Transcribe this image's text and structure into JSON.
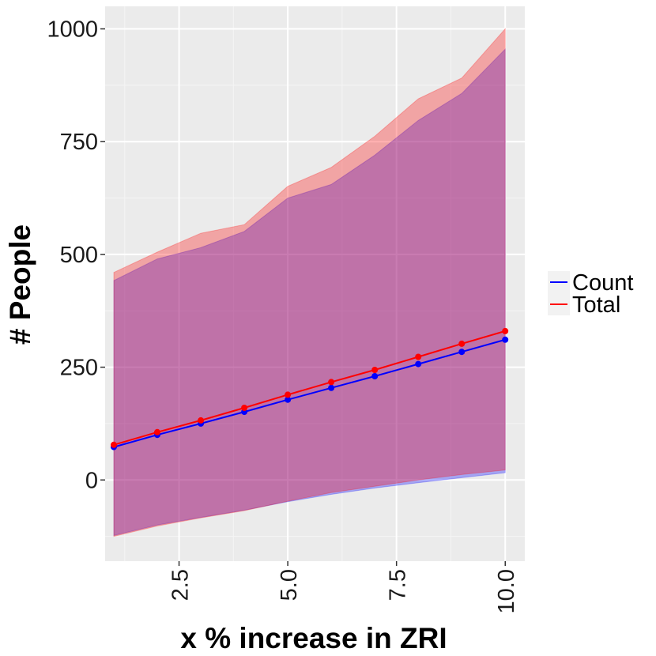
{
  "chart_data": {
    "type": "line",
    "xlabel": "x % increase in ZRI",
    "ylabel": "# People",
    "xlim": [
      0.8,
      10.45
    ],
    "ylim": [
      -180,
      1050
    ],
    "x_ticks": [
      2.5,
      5.0,
      7.5,
      10.0
    ],
    "x_tick_labels": [
      "2.5",
      "5.0",
      "7.5",
      "10.0"
    ],
    "x_minor_ticks": [
      1.25,
      3.75,
      6.25,
      8.75
    ],
    "y_ticks": [
      0,
      250,
      500,
      750,
      1000
    ],
    "y_tick_labels": [
      "0",
      "250",
      "500",
      "750",
      "1000"
    ],
    "y_minor_ticks": [
      -125,
      125,
      375,
      625,
      875
    ],
    "grid": true,
    "legend_position": "right",
    "x": [
      1,
      2,
      3,
      4,
      5,
      6,
      7,
      8,
      9,
      10
    ],
    "series": [
      {
        "name": "Count",
        "color": "#0000ff",
        "values": [
          73,
          100,
          125,
          151,
          178,
          204,
          230,
          257,
          284,
          311
        ],
        "lower": [
          -123,
          -100,
          -83,
          -67,
          -48,
          -32,
          -18,
          -6,
          5,
          16
        ],
        "upper": [
          442,
          490,
          515,
          551,
          625,
          655,
          720,
          797,
          857,
          955
        ]
      },
      {
        "name": "Total",
        "color": "#ff0000",
        "values": [
          78,
          106,
          132,
          160,
          189,
          217,
          244,
          273,
          302,
          330
        ],
        "lower": [
          -125,
          -102,
          -84,
          -68,
          -47,
          -28,
          -14,
          0,
          12,
          22
        ],
        "upper": [
          460,
          505,
          547,
          566,
          651,
          693,
          762,
          845,
          891,
          1000
        ]
      }
    ]
  }
}
